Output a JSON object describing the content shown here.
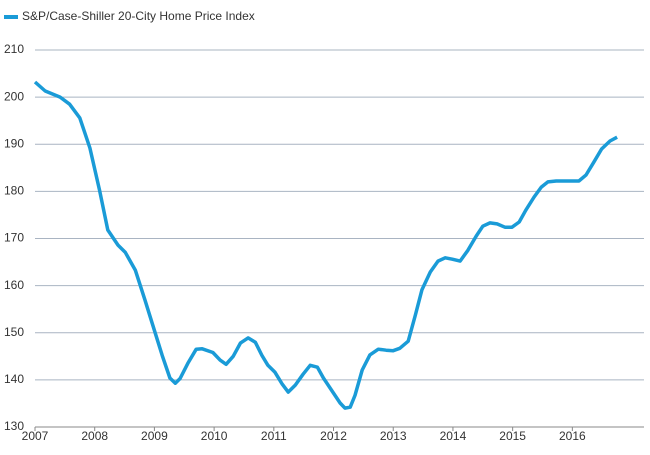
{
  "chart_data": {
    "type": "line",
    "series": [
      {
        "name": "S&P/Case-Shiller 20-City Home Price Index",
        "color": "#1a9bd7",
        "x": [
          2007,
          2007.17,
          2007.42,
          2007.58,
          2007.75,
          2007.92,
          2008.08,
          2008.22,
          2008.39,
          2008.51,
          2008.68,
          2008.84,
          2009.01,
          2009.13,
          2009.26,
          2009.35,
          2009.43,
          2009.56,
          2009.7,
          2009.8,
          2009.98,
          2010.1,
          2010.2,
          2010.32,
          2010.44,
          2010.57,
          2010.69,
          2010.8,
          2010.9,
          2011.02,
          2011.14,
          2011.24,
          2011.36,
          2011.49,
          2011.61,
          2011.73,
          2011.83,
          2012,
          2012.11,
          2012.19,
          2012.28,
          2012.36,
          2012.48,
          2012.61,
          2012.75,
          2012.88,
          2013,
          2013.11,
          2013.25,
          2013.37,
          2013.48,
          2013.62,
          2013.75,
          2013.87,
          2013.99,
          2014.12,
          2014.25,
          2014.39,
          2014.5,
          2014.62,
          2014.74,
          2014.87,
          2014.99,
          2015.11,
          2015.22,
          2015.36,
          2015.48,
          2015.59,
          2015.73,
          2015.88,
          2016,
          2016.11,
          2016.23,
          2016.36,
          2016.49,
          2016.63,
          2016.75
        ],
        "values": [
          203.2,
          201.3,
          200.0,
          198.5,
          195.6,
          189.2,
          180.3,
          171.8,
          168.6,
          167.1,
          163.3,
          157.0,
          150.1,
          145.2,
          140.4,
          139.3,
          140.3,
          143.5,
          146.5,
          146.6,
          145.8,
          144.2,
          143.3,
          145.0,
          147.8,
          148.9,
          148.0,
          145.2,
          143.1,
          141.6,
          139.1,
          137.4,
          138.9,
          141.2,
          143.1,
          142.7,
          140.4,
          137.2,
          135.1,
          134.0,
          134.2,
          136.7,
          142.1,
          145.3,
          146.5,
          146.3,
          146.2,
          146.7,
          148.2,
          153.7,
          159.1,
          162.9,
          165.2,
          165.9,
          165.6,
          165.2,
          167.5,
          170.5,
          172.6,
          173.3,
          173.1,
          172.4,
          172.4,
          173.5,
          176.0,
          178.8,
          180.9,
          182.0,
          182.2,
          182.2,
          182.2,
          182.2,
          183.5,
          186.2,
          189.0,
          190.7,
          191.5
        ]
      }
    ],
    "xlim": [
      2007,
      2017.2
    ],
    "xticks": [
      2007,
      2008,
      2009,
      2010,
      2011,
      2012,
      2013,
      2014,
      2015,
      2016
    ],
    "ylim": [
      130,
      210
    ],
    "yticks": [
      130,
      140,
      150,
      160,
      170,
      180,
      190,
      200,
      210
    ],
    "grid": true
  }
}
